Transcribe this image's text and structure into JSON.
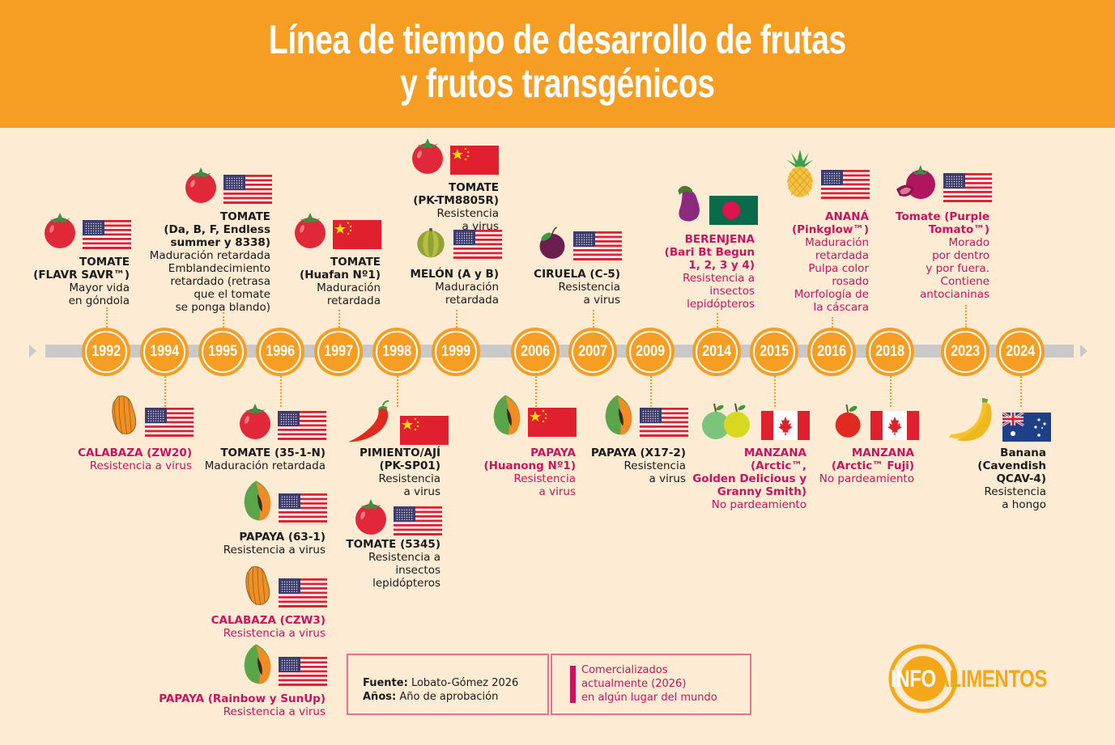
{
  "header": {
    "title_line1": "Línea de tiempo de desarrollo de frutas",
    "title_line2": "y frutos transgénicos",
    "background_color": "#f59e23"
  },
  "timeline": {
    "years": [
      "1992",
      "1994",
      "1995",
      "1996",
      "1997",
      "1998",
      "1999",
      "2006",
      "2007",
      "2009",
      "2014",
      "2015",
      "2016",
      "2018",
      "2023",
      "2024"
    ]
  },
  "colors": {
    "accent_orange": "#f59e23",
    "commercialized_pink": "#c8145e",
    "axis_gray": "#c9c9c9",
    "background": "#fdebd3"
  },
  "entries": {
    "e1992": {
      "year": "1992",
      "fruit": "tomato",
      "flag": "usa",
      "name": "TOMATE\n(FLAVR SAVR™)",
      "desc": "Mayor vida\nen góndola",
      "commercial": false
    },
    "e1995": {
      "year": "1995",
      "fruit": "tomato",
      "flag": "usa",
      "name": "TOMATE\n(Da, B, F, Endless\nsummer y 8338)",
      "desc": "Maduración retardada\nEmblandecimiento\nretardado (retrasa\nque el tomate\nse ponga blando)",
      "commercial": false
    },
    "e1997": {
      "year": "1997",
      "fruit": "tomato",
      "flag": "china",
      "name": "TOMATE\n(Huafan Nº1)",
      "desc": "Maduración\nretardada",
      "commercial": false
    },
    "e1999a": {
      "year": "1999",
      "fruit": "tomato",
      "flag": "china",
      "name": "TOMATE\n(PK-TM8805R)",
      "desc": "Resistencia\na virus",
      "commercial": false
    },
    "e1999b": {
      "year": "1999",
      "fruit": "melon",
      "flag": "usa",
      "name": "MELÓN (A y B)",
      "desc": "Maduración\nretardada",
      "commercial": false
    },
    "e2007": {
      "year": "2007",
      "fruit": "plum",
      "flag": "usa",
      "name": "CIRUELA (C-5)",
      "desc": "Resistencia\na virus",
      "commercial": false
    },
    "e2014": {
      "year": "2014",
      "fruit": "eggplant",
      "flag": "bangladesh",
      "name": "BERENJENA\n(Bari Bt Begun\n1, 2, 3 y 4)",
      "desc": "Resistencia a\ninsectos\nlepidópteros",
      "commercial": true
    },
    "e2016": {
      "year": "2016",
      "fruit": "pineapple",
      "flag": "usa",
      "name": "ANANÁ\n(Pinkglow™)",
      "desc": "Maduración\nretardada\nPulpa color\nrosado\nMorfología de\nla cáscara",
      "commercial": true
    },
    "e2023": {
      "year": "2023",
      "fruit": "purple-tomato",
      "flag": "usa",
      "name": "Tomate (Purple\nTomato™)",
      "desc": "Morado\npor dentro\ny por fuera.\nContiene\nantocianinas",
      "commercial": true
    },
    "e1994": {
      "year": "1994",
      "fruit": "squash",
      "flag": "usa",
      "name": "CALABAZA (ZW20)",
      "desc": "Resistencia a virus",
      "commercial": true
    },
    "e1996a": {
      "year": "1996",
      "fruit": "tomato",
      "flag": "usa",
      "name": "TOMATE (35-1-N)",
      "desc": "Maduración retardada",
      "commercial": false
    },
    "e1996b": {
      "year": "1996",
      "fruit": "papaya",
      "flag": "usa",
      "name": "PAPAYA (63-1)",
      "desc": "Resistencia a virus",
      "commercial": false
    },
    "e1996c": {
      "year": "1996",
      "fruit": "squash",
      "flag": "usa",
      "name": "CALABAZA (CZW3)",
      "desc": "Resistencia a virus",
      "commercial": true
    },
    "e1996d": {
      "year": "1996",
      "fruit": "papaya",
      "flag": "usa",
      "name": "PAPAYA (Rainbow y SunUp)",
      "desc": "Resistencia a virus",
      "commercial": true
    },
    "e1998a": {
      "year": "1998",
      "fruit": "chili",
      "flag": "china",
      "name": "PIMIENTO/AJÍ\n(PK-SP01)",
      "desc": "Resistencia\na virus",
      "commercial": false
    },
    "e1998b": {
      "year": "1998",
      "fruit": "tomato",
      "flag": "usa",
      "name": "TOMATE (5345)",
      "desc": "Resistencia a\ninsectos\nlepidópteros",
      "commercial": false
    },
    "e2006": {
      "year": "2006",
      "fruit": "papaya",
      "flag": "china",
      "name": "PAPAYA\n(Huanong Nº1)",
      "desc": "Resistencia\na virus",
      "commercial": true
    },
    "e2009": {
      "year": "2009",
      "fruit": "papaya",
      "flag": "usa",
      "name": "PAPAYA (X17-2)",
      "desc": "Resistencia\na virus",
      "commercial": false
    },
    "e2015": {
      "year": "2015",
      "fruit": "green-yellow-apples",
      "flag": "canada",
      "name": "MANZANA\n(Arctic™,\nGolden Delicious y\nGranny Smith)",
      "desc": "No pardeamiento",
      "commercial": true
    },
    "e2018": {
      "year": "2018",
      "fruit": "red-apple",
      "flag": "canada",
      "name": "MANZANA\n(Arctic™ Fuji)",
      "desc": "No pardeamiento",
      "commercial": true
    },
    "e2024": {
      "year": "2024",
      "fruit": "banana",
      "flag": "australia",
      "name": "Banana\n(Cavendish\nQCAV-4)",
      "desc": "Resistencia\na hongo",
      "commercial": false
    }
  },
  "legend": {
    "source_label": "Fuente:",
    "source_value": "Lobato-Gómez 2026",
    "years_label": "Años:",
    "years_value": "Año de aprobación",
    "commercial_note": "Comercializados\nactualmente (2026)\nen algún lugar del mundo"
  },
  "logo": {
    "part1": "INFO",
    "part2": "ALIMENTOS"
  }
}
